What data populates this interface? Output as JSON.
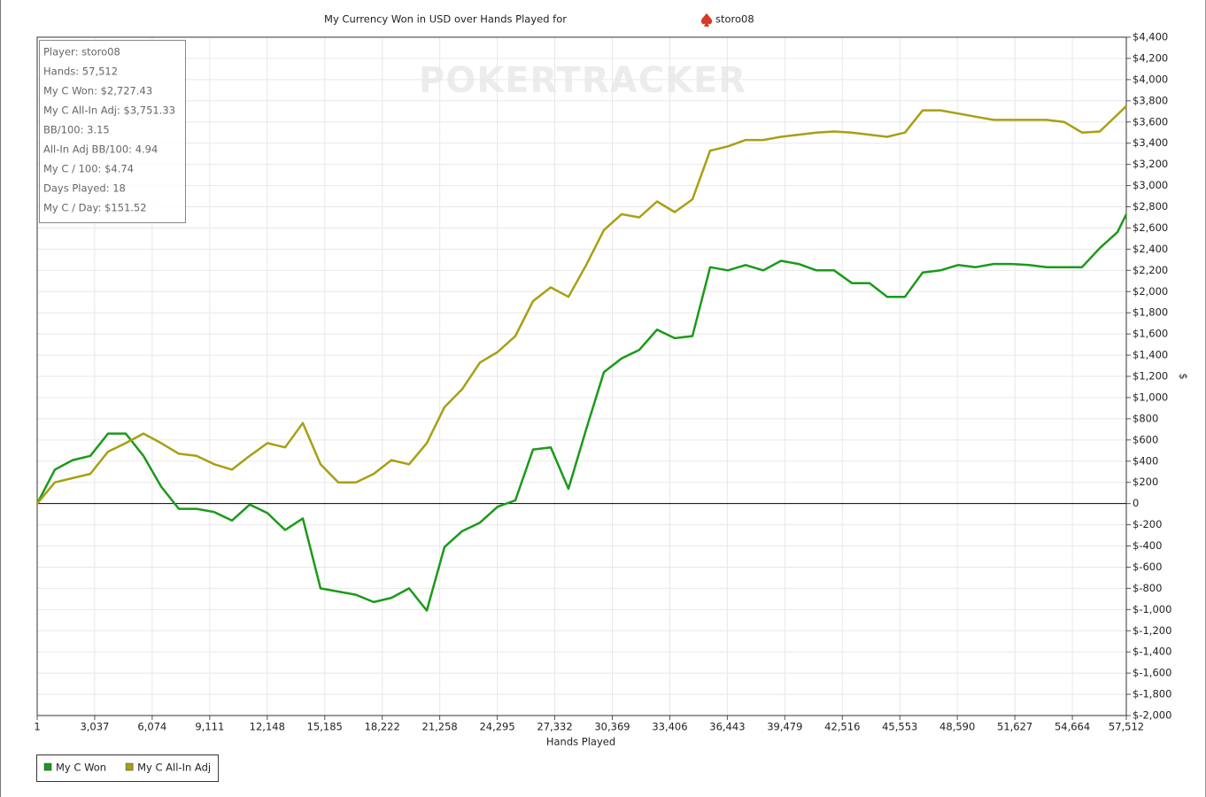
{
  "chart_data": {
    "type": "line",
    "title": "My Currency Won in USD over Hands Played for",
    "title_player": "storo08",
    "watermark": "POKERTRACKER",
    "xlabel": "Hands Played",
    "ylabel": "$",
    "stats": [
      "Player: storo08",
      "Hands: 57,512",
      "My C Won: $2,727.43",
      "My C All-In Adj: $3,751.33",
      "BB/100: 3.15",
      "All-In Adj BB/100: 4.94",
      "My C / 100: $4.74",
      "Days Played: 18",
      "My C / Day: $151.52"
    ],
    "grid": true,
    "legend": "bottom-left",
    "xlim": [
      1,
      57512
    ],
    "ylim": [
      -2000,
      4400
    ],
    "xticks": [
      1,
      {
        "value": 3037,
        "label": "3,037"
      },
      {
        "value": 6074,
        "label": "6,074"
      },
      {
        "value": 9111,
        "label": "9,111"
      },
      {
        "value": 12148,
        "label": "12,148"
      },
      {
        "value": 15185,
        "label": "15,185"
      },
      {
        "value": 18222,
        "label": "18,222"
      },
      {
        "value": 21258,
        "label": "21,258"
      },
      {
        "value": 24295,
        "label": "24,295"
      },
      {
        "value": 27332,
        "label": "27,332"
      },
      {
        "value": 30369,
        "label": "30,369"
      },
      {
        "value": 33406,
        "label": "33,406"
      },
      {
        "value": 36443,
        "label": "36,443"
      },
      {
        "value": 39479,
        "label": "39,479"
      },
      {
        "value": 42516,
        "label": "42,516"
      },
      {
        "value": 45553,
        "label": "45,553"
      },
      {
        "value": 48590,
        "label": "48,590"
      },
      {
        "value": 51627,
        "label": "51,627"
      },
      {
        "value": 54664,
        "label": "54,664"
      },
      {
        "value": 57512,
        "label": "57,512"
      }
    ],
    "yticks": [
      {
        "value": 4400,
        "label": "$4,400"
      },
      {
        "value": 4200,
        "label": "$4,200"
      },
      {
        "value": 4000,
        "label": "$4,000"
      },
      {
        "value": 3800,
        "label": "$3,800"
      },
      {
        "value": 3600,
        "label": "$3,600"
      },
      {
        "value": 3400,
        "label": "$3,400"
      },
      {
        "value": 3200,
        "label": "$3,200"
      },
      {
        "value": 3000,
        "label": "$3,000"
      },
      {
        "value": 2800,
        "label": "$2,800"
      },
      {
        "value": 2600,
        "label": "$2,600"
      },
      {
        "value": 2400,
        "label": "$2,400"
      },
      {
        "value": 2200,
        "label": "$2,200"
      },
      {
        "value": 2000,
        "label": "$2,000"
      },
      {
        "value": 1800,
        "label": "$1,800"
      },
      {
        "value": 1600,
        "label": "$1,600"
      },
      {
        "value": 1400,
        "label": "$1,400"
      },
      {
        "value": 1200,
        "label": "$1,200"
      },
      {
        "value": 1000,
        "label": "$1,000"
      },
      {
        "value": 800,
        "label": "$800"
      },
      {
        "value": 600,
        "label": "$600"
      },
      {
        "value": 400,
        "label": "$400"
      },
      {
        "value": 200,
        "label": "$200"
      },
      0,
      {
        "value": -200,
        "label": "$-200"
      },
      {
        "value": -400,
        "label": "$-400"
      },
      {
        "value": -600,
        "label": "$-600"
      },
      {
        "value": -800,
        "label": "$-800"
      },
      {
        "value": -1000,
        "label": "$-1,000"
      },
      {
        "value": -1200,
        "label": "$-1,200"
      },
      {
        "value": -1400,
        "label": "$-1,400"
      },
      {
        "value": -1600,
        "label": "$-1,600"
      },
      {
        "value": -1800,
        "label": "$-1,800"
      },
      {
        "value": -2000,
        "label": "$-2,000"
      }
    ],
    "x": [
      1,
      936,
      1871,
      2806,
      3742,
      4677,
      5612,
      6547,
      7482,
      8417,
      9352,
      10287,
      11222,
      12157,
      13093,
      14028,
      14963,
      15898,
      16833,
      17768,
      18703,
      19638,
      20574,
      21509,
      22444,
      23379,
      24314,
      25249,
      26184,
      27119,
      28055,
      28990,
      29925,
      30860,
      31795,
      32730,
      33665,
      34600,
      35535,
      36470,
      37406,
      38341,
      39276,
      40211,
      41146,
      42081,
      43016,
      43951,
      44887,
      45822,
      46757,
      47692,
      48627,
      49562,
      50497,
      51432,
      52368,
      53303,
      54238,
      55173,
      56108,
      57043,
      57512
    ],
    "series": [
      {
        "name": "My C Won",
        "color": "#1a9a1a",
        "values": [
          0,
          320,
          410,
          450,
          660,
          660,
          450,
          160,
          -50,
          -50,
          -80,
          -160,
          -10,
          -90,
          -250,
          -140,
          -800,
          -830,
          -860,
          -930,
          -890,
          -800,
          -1010,
          -410,
          -260,
          -180,
          -30,
          30,
          510,
          530,
          140,
          700,
          1240,
          1370,
          1450,
          1640,
          1560,
          1580,
          2230,
          2200,
          2250,
          2200,
          2290,
          2260,
          2200,
          2200,
          2080,
          2080,
          1950,
          1950,
          2180,
          2200,
          2250,
          2230,
          2260,
          2260,
          2250,
          2230,
          2230,
          2230,
          2410,
          2560,
          2730
        ]
      },
      {
        "name": "My C All-In Adj",
        "color": "#a8a012",
        "values": [
          0,
          200,
          240,
          280,
          490,
          570,
          660,
          570,
          470,
          450,
          370,
          320,
          450,
          570,
          530,
          760,
          370,
          200,
          200,
          280,
          410,
          370,
          570,
          910,
          1080,
          1330,
          1430,
          1580,
          1910,
          2040,
          1950,
          2250,
          2580,
          2730,
          2700,
          2850,
          2750,
          2870,
          3330,
          3370,
          3430,
          3430,
          3460,
          3480,
          3500,
          3510,
          3500,
          3480,
          3460,
          3500,
          3710,
          3710,
          3680,
          3650,
          3620,
          3620,
          3620,
          3620,
          3600,
          3500,
          3510,
          3670,
          3750
        ]
      }
    ]
  }
}
